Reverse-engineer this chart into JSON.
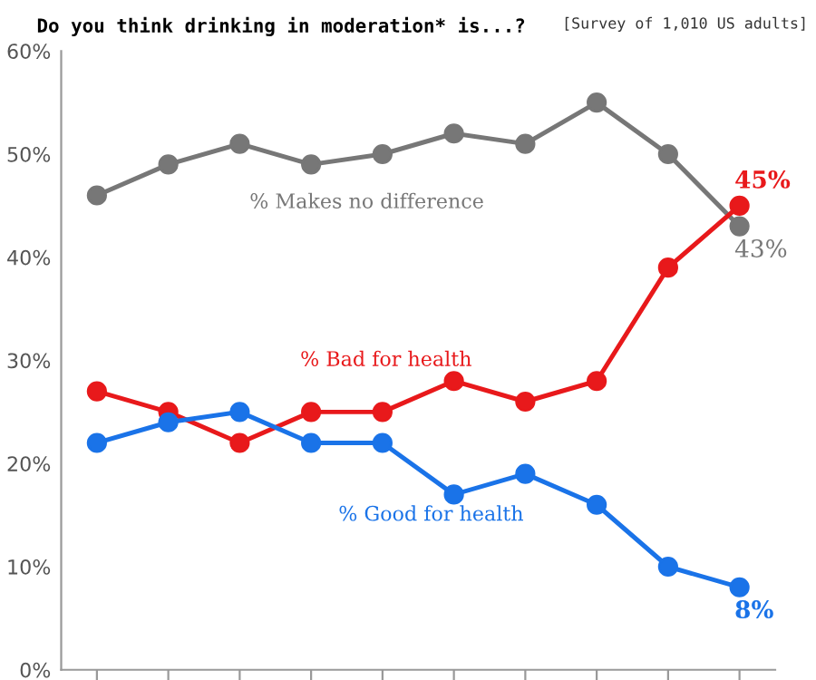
{
  "chart_data": {
    "type": "line",
    "title": "Do you think drinking in moderation* is...?",
    "subtitle": "[Survey of 1,010 US adults]",
    "categories": [
      null,
      null,
      null,
      null,
      null,
      null,
      null,
      null,
      null,
      null
    ],
    "ylim": [
      0,
      60
    ],
    "yticks": [
      {
        "value": 0,
        "label": "0%"
      },
      {
        "value": 10,
        "label": "10%"
      },
      {
        "value": 20,
        "label": "20%"
      },
      {
        "value": 30,
        "label": "30%"
      },
      {
        "value": 40,
        "label": "40%"
      },
      {
        "value": 50,
        "label": "50%"
      },
      {
        "value": 60,
        "label": "60%"
      }
    ],
    "series": [
      {
        "name": "% Makes no difference",
        "color": "#777777",
        "values": [
          46,
          49,
          51,
          49,
          50,
          52,
          51,
          55,
          50,
          43
        ],
        "value_labels": [
          null,
          null,
          null,
          null,
          null,
          null,
          null,
          null,
          null,
          "43%"
        ]
      },
      {
        "name": "% Bad for health",
        "color": "#e8191b",
        "values": [
          27,
          25,
          22,
          25,
          25,
          28,
          26,
          28,
          39,
          45
        ],
        "value_labels": [
          null,
          null,
          null,
          null,
          null,
          null,
          null,
          null,
          null,
          "45%"
        ]
      },
      {
        "name": "% Good for health",
        "color": "#1a73e8",
        "values": [
          22,
          24,
          25,
          22,
          22,
          17,
          19,
          16,
          10,
          8
        ],
        "value_labels": [
          null,
          null,
          null,
          null,
          null,
          null,
          null,
          null,
          null,
          "8%"
        ]
      }
    ],
    "marker": "circle",
    "line_style": "solid"
  }
}
